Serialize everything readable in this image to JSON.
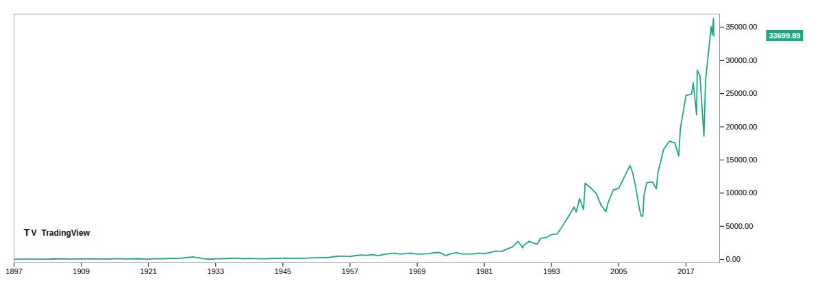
{
  "chart_data": {
    "type": "line",
    "color": "#1AA884",
    "grid": false,
    "xlim": [
      1897,
      2023
    ],
    "xticks": [
      1897,
      1909,
      1921,
      1933,
      1945,
      1957,
      1969,
      1981,
      1993,
      2005,
      2017
    ],
    "ylim": [
      -500,
      37000
    ],
    "yticks": [
      {
        "value": 0.0,
        "label": "0.00"
      },
      {
        "value": 5000.0,
        "label": "5000.00"
      },
      {
        "value": 10000.0,
        "label": "10000.00"
      },
      {
        "value": 15000.0,
        "label": "15000.00"
      },
      {
        "value": 20000.0,
        "label": "20000.00"
      },
      {
        "value": 25000.0,
        "label": "25000.00"
      },
      {
        "value": 30000.0,
        "label": "30000.00"
      },
      {
        "value": 35000.0,
        "label": "35000.00"
      }
    ],
    "annotations": [
      {
        "text": "33699.89",
        "y": 33699
      },
      {
        "text": "T"
      },
      {
        "text": "V"
      },
      {
        "text": "TradingView"
      }
    ],
    "x": [
      1897,
      1899,
      1901,
      1902,
      1903,
      1904,
      1905,
      1906,
      1907,
      1908,
      1909,
      1910,
      1911,
      1912,
      1913,
      1914,
      1915,
      1916,
      1917,
      1918,
      1919,
      1920,
      1921,
      1922,
      1923,
      1924,
      1925,
      1926,
      1927,
      1928,
      1929,
      1929.8,
      1930,
      1930.5,
      1931,
      1932,
      1933,
      1934,
      1935,
      1936,
      1937,
      1937.5,
      1938,
      1939,
      1940,
      1941,
      1942,
      1943,
      1944,
      1945,
      1946,
      1946.5,
      1947,
      1948,
      1949,
      1950,
      1951,
      1952,
      1953,
      1954,
      1955,
      1956,
      1957,
      1958,
      1959,
      1960,
      1961,
      1962,
      1963,
      1964,
      1965,
      1966,
      1967,
      1968,
      1969,
      1970,
      1971,
      1972,
      1973,
      1973.5,
      1974,
      1975,
      1976,
      1977,
      1978,
      1979,
      1980,
      1981,
      1982,
      1983,
      1984,
      1985,
      1986,
      1987,
      1987.85,
      1988,
      1989,
      1990,
      1990.5,
      1991,
      1992,
      1993,
      1994,
      1995,
      1996,
      1997,
      1997.4,
      1998,
      1998.7,
      1999,
      2000,
      2001,
      2001.8,
      2002,
      2002.7,
      2003,
      2004,
      2005,
      2006,
      2007,
      2007.5,
      2008,
      2008.7,
      2009,
      2009.3,
      2009.5,
      2010,
      2011,
      2011.7,
      2012,
      2013,
      2014,
      2015,
      2015.7,
      2016,
      2017,
      2018,
      2018.3,
      2018.9,
      2019,
      2019.5,
      2020.2,
      2020.5,
      2020.8,
      2021,
      2021.3,
      2021.5,
      2021.7,
      2021.9,
      2022.0
    ],
    "values": [
      38,
      58,
      65,
      60,
      48,
      68,
      80,
      102,
      58,
      86,
      100,
      85,
      82,
      88,
      78,
      55,
      100,
      110,
      72,
      84,
      120,
      68,
      64,
      98,
      98,
      122,
      160,
      165,
      200,
      300,
      380,
      230,
      270,
      160,
      100,
      44,
      100,
      105,
      148,
      185,
      195,
      130,
      120,
      155,
      135,
      115,
      112,
      145,
      150,
      195,
      212,
      165,
      178,
      185,
      180,
      235,
      270,
      280,
      274,
      405,
      490,
      500,
      436,
      584,
      680,
      616,
      740,
      580,
      763,
      875,
      970,
      800,
      906,
      944,
      800,
      840,
      890,
      1020,
      1052,
      880,
      580,
      860,
      1005,
      832,
      820,
      840,
      963,
      875,
      1046,
      1260,
      1212,
      1547,
      1896,
      2722,
      1739,
      2100,
      2753,
      2365,
      2365,
      3170,
      3301,
      3756,
      3834,
      5117,
      6449,
      7908,
      7161,
      9181,
      7539,
      11497,
      10787,
      9900,
      8236,
      8000,
      7197,
      8342,
      10453,
      10718,
      12463,
      14164,
      13000,
      11000,
      7552,
      6547,
      6547,
      9626,
      11577,
      11700,
      10655,
      13104,
      16576,
      17823,
      17600,
      15588,
      19763,
      24719,
      24930,
      26617,
      21792,
      28538,
      27691,
      18591,
      27000,
      29500,
      31097,
      33500,
      35091,
      33870,
      36338,
      33699
    ]
  }
}
